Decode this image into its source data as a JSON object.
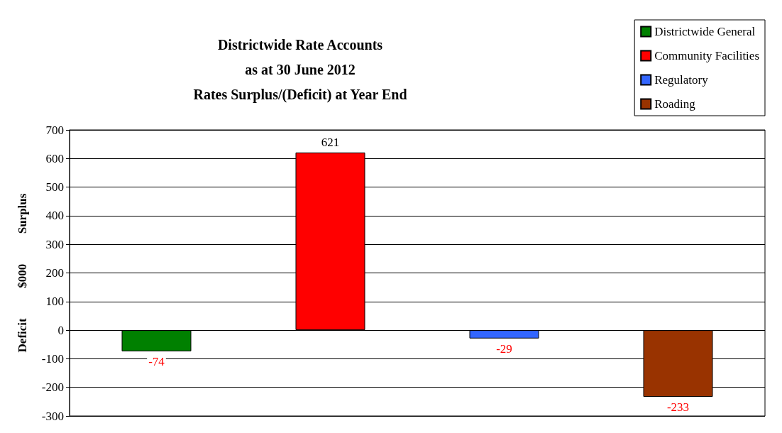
{
  "chart_data": {
    "type": "bar",
    "title": "Districtwide Rate Accounts\nas at 30 June 2012\nRates Surplus/(Deficit) at Year End",
    "ylabel": "Deficit          $000          Surplus",
    "categories": [
      null,
      null,
      null,
      null
    ],
    "series": [
      {
        "name": "Districtwide General",
        "color": "#008000",
        "values": [
          -74,
          null,
          null,
          null
        ]
      },
      {
        "name": "Community Facilities",
        "color": "#ff0000",
        "values": [
          null,
          621,
          null,
          null
        ]
      },
      {
        "name": "Regulatory",
        "color": "#3366ff",
        "values": [
          null,
          null,
          -29,
          null
        ]
      },
      {
        "name": "Roading",
        "color": "#993300",
        "values": [
          null,
          null,
          null,
          -233
        ]
      }
    ],
    "ylim": [
      -300,
      700
    ],
    "yticks": [
      -300,
      -200,
      -100,
      0,
      100,
      200,
      300,
      400,
      500,
      600,
      700
    ],
    "grid": "y",
    "legend": "top right",
    "data_labels": true
  }
}
